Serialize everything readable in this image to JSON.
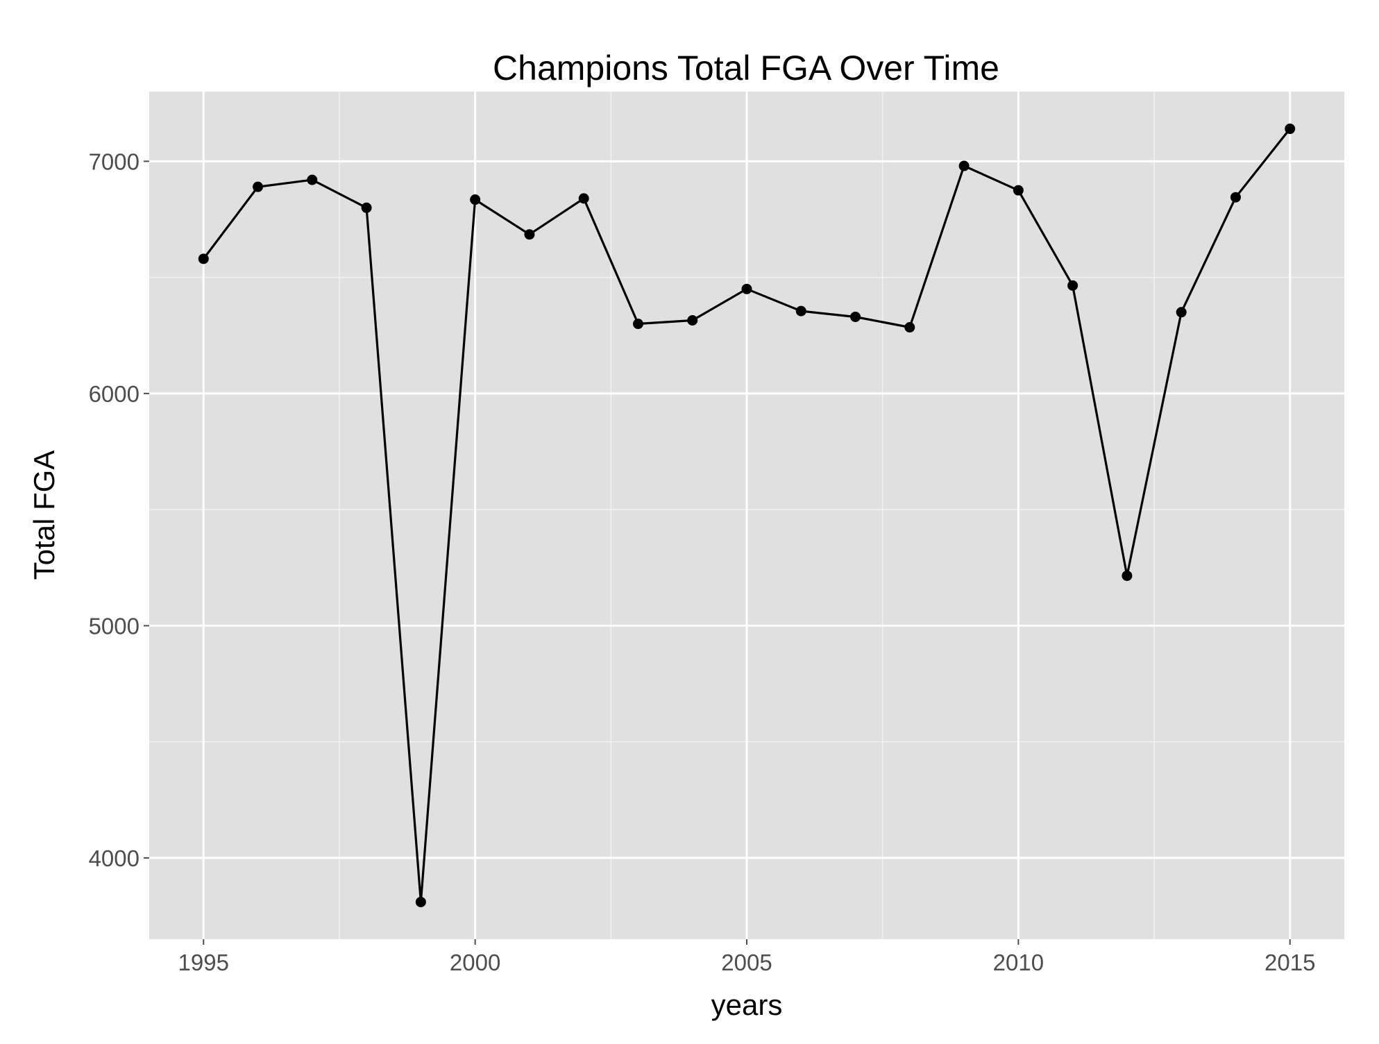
{
  "chart_data": {
    "type": "line",
    "title": "Champions Total FGA Over Time",
    "xlabel": "years",
    "ylabel": "Total FGA",
    "xlim": [
      1994,
      2016
    ],
    "ylim": [
      3650,
      7300
    ],
    "x_ticks": [
      1995,
      2000,
      2005,
      2010,
      2015
    ],
    "y_ticks": [
      4000,
      5000,
      6000,
      7000
    ],
    "grid": true,
    "panel_background": "#e0e0e0",
    "grid_color": "#ffffff",
    "line_color": "#000000",
    "point_color": "#000000",
    "series": [
      {
        "x": [
          1995,
          1996,
          1997,
          1998,
          1999,
          2000,
          2001,
          2002,
          2003,
          2004,
          2005,
          2006,
          2007,
          2008,
          2009,
          2010,
          2011,
          2012,
          2013,
          2014,
          2015
        ],
        "values": [
          6580,
          6890,
          6920,
          6800,
          3810,
          6835,
          6685,
          6840,
          6300,
          6315,
          6450,
          6355,
          6330,
          6285,
          6980,
          6875,
          6465,
          5215,
          6350,
          6845,
          7140
        ]
      }
    ]
  }
}
